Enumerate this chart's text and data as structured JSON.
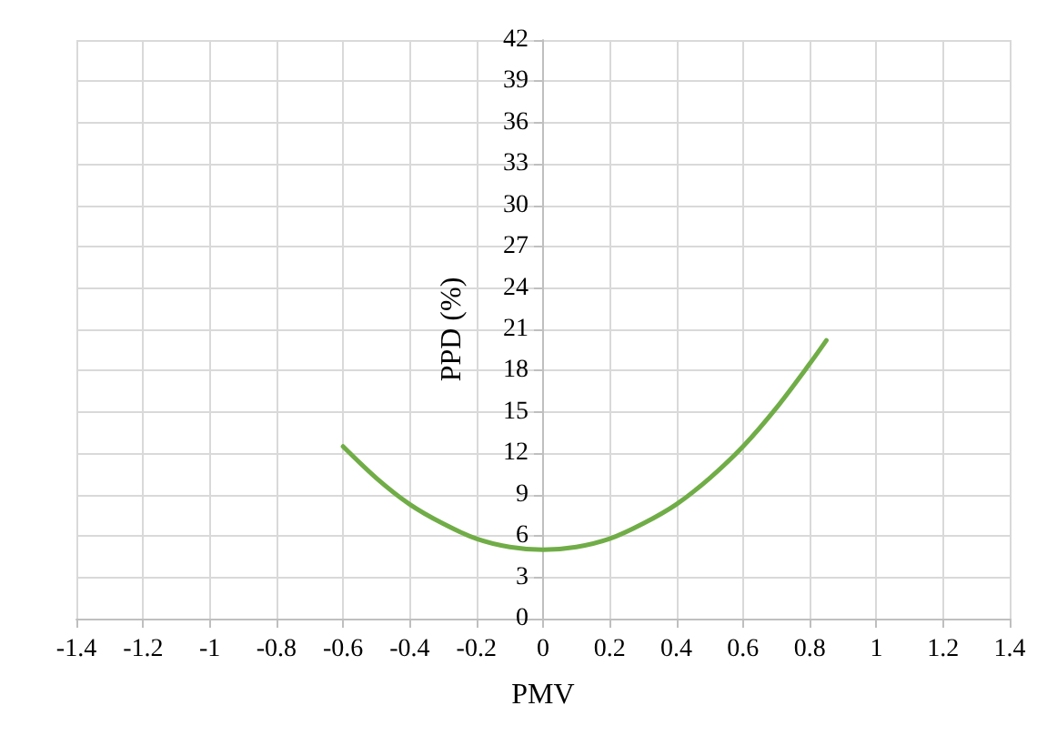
{
  "chart_data": {
    "type": "line",
    "xlabel": "PMV",
    "ylabel": "PPD (%)",
    "x": [
      -0.6,
      -0.5,
      -0.4,
      -0.3,
      -0.2,
      -0.1,
      0,
      0.1,
      0.2,
      0.3,
      0.4,
      0.5,
      0.6,
      0.7,
      0.8,
      0.85
    ],
    "series": [
      {
        "color": "#70ad47",
        "values": [
          12.5,
          10.2,
          8.3,
          6.9,
          5.8,
          5.2,
          5.0,
          5.2,
          5.8,
          6.9,
          8.3,
          10.2,
          12.5,
          15.3,
          18.5,
          20.2
        ]
      }
    ],
    "xlim": [
      -1.4,
      1.4
    ],
    "xticks": [
      -1.4,
      -1.2,
      -1,
      -0.8,
      -0.6,
      -0.4,
      -0.2,
      0,
      0.2,
      0.4,
      0.6,
      0.8,
      1,
      1.2,
      1.4
    ],
    "ylim": [
      0,
      42
    ],
    "yticks": [
      0,
      3,
      6,
      9,
      12,
      15,
      18,
      21,
      24,
      27,
      30,
      33,
      36,
      39,
      42
    ],
    "grid": true,
    "marker": "none",
    "line_style": "solid"
  }
}
